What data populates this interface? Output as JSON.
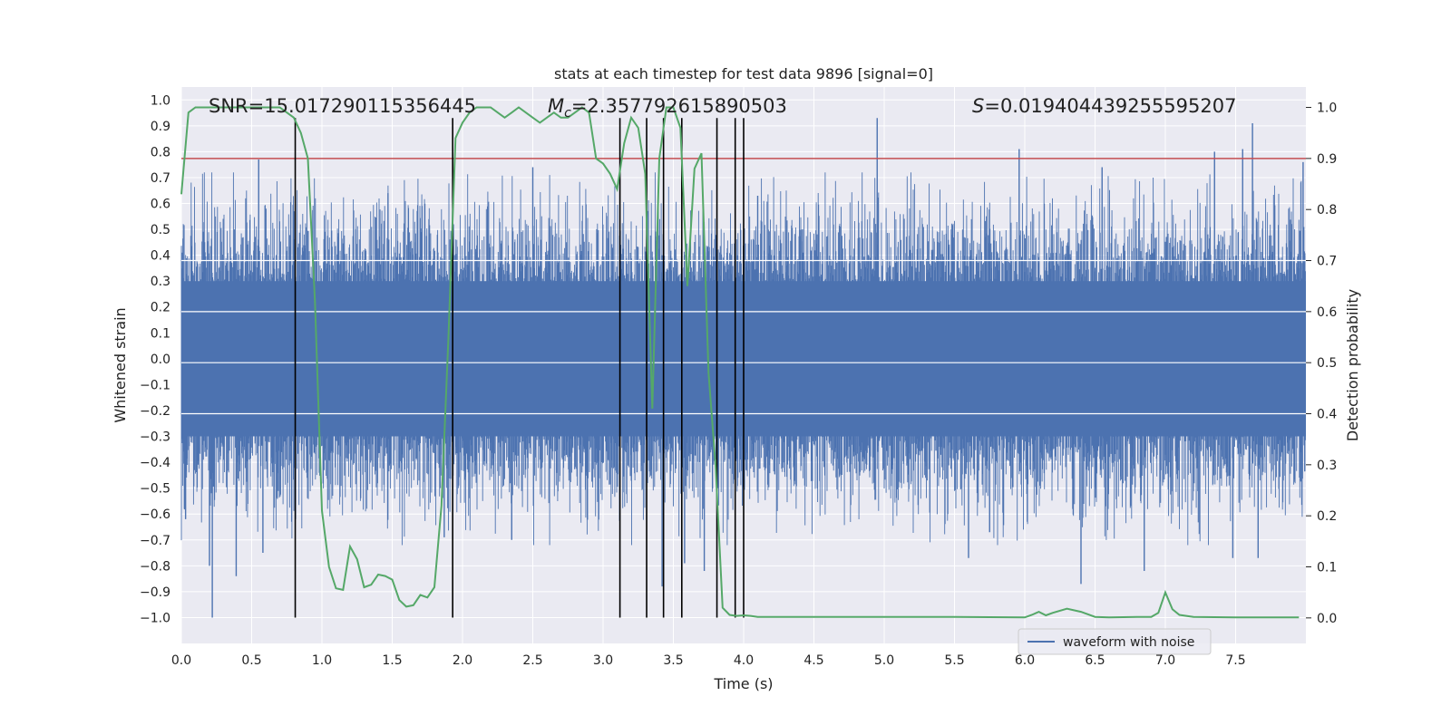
{
  "chart_data": {
    "type": "line",
    "title": "stats at each timestep for test data 9896 [signal=0]",
    "xlabel": "Time (s)",
    "ylabel": "Whitened strain",
    "ylabel_right": "Detection probability",
    "xlim": [
      0.0,
      8.0
    ],
    "ylim": [
      -1.1,
      1.05
    ],
    "ylim_right": [
      -0.05,
      1.04
    ],
    "x_ticks": [
      "0.0",
      "0.5",
      "1.0",
      "1.5",
      "2.0",
      "2.5",
      "3.0",
      "3.5",
      "4.0",
      "4.5",
      "5.0",
      "5.5",
      "6.0",
      "6.5",
      "7.0",
      "7.5"
    ],
    "y_ticks": [
      "1.0",
      "0.9",
      "0.8",
      "0.7",
      "0.6",
      "0.5",
      "0.4",
      "0.3",
      "0.2",
      "0.1",
      "0.0",
      "−0.1",
      "−0.2",
      "−0.3",
      "−0.4",
      "−0.5",
      "−0.6",
      "−0.7",
      "−0.8",
      "−0.9",
      "−1.0"
    ],
    "y_ticks_right": [
      "1.0",
      "0.9",
      "0.8",
      "0.7",
      "0.6",
      "0.5",
      "0.4",
      "0.3",
      "0.2",
      "0.1",
      "0.0"
    ],
    "annotations": {
      "snr": "SNR=15.017290115356445",
      "mc_symbol": "M",
      "mc_sub": "c",
      "mc_value": "=2.357792615890503",
      "s_symbol": "S",
      "s_value": "=0.019404439255595207"
    },
    "legend": {
      "label": "waveform with noise",
      "position": "lower right"
    },
    "threshold": 0.9,
    "vlines_x": [
      0.81,
      1.93,
      3.12,
      3.31,
      3.43,
      3.56,
      3.81,
      3.94,
      4.0
    ],
    "vline_range": [
      -1.0,
      0.93
    ],
    "series": [
      {
        "name": "waveform with noise",
        "axis": "left",
        "style": "dense noise",
        "core_amplitude": 0.4,
        "spikes": [
          {
            "x": 0.03,
            "y": -0.62
          },
          {
            "x": 0.2,
            "y": -0.8
          },
          {
            "x": 0.22,
            "y": -1.0
          },
          {
            "x": 0.39,
            "y": -0.84
          },
          {
            "x": 0.55,
            "y": 0.77
          },
          {
            "x": 0.58,
            "y": -0.75
          },
          {
            "x": 0.8,
            "y": 0.57
          },
          {
            "x": 1.47,
            "y": 0.64
          },
          {
            "x": 1.87,
            "y": -0.69
          },
          {
            "x": 2.35,
            "y": -0.7
          },
          {
            "x": 2.5,
            "y": 0.74
          },
          {
            "x": 3.42,
            "y": -0.88
          },
          {
            "x": 3.58,
            "y": -0.79
          },
          {
            "x": 3.72,
            "y": -0.82
          },
          {
            "x": 4.1,
            "y": 0.63
          },
          {
            "x": 4.95,
            "y": 0.93
          },
          {
            "x": 5.6,
            "y": -0.77
          },
          {
            "x": 5.75,
            "y": -0.67
          },
          {
            "x": 5.96,
            "y": 0.81
          },
          {
            "x": 6.4,
            "y": -0.87
          },
          {
            "x": 6.55,
            "y": 0.74
          },
          {
            "x": 6.85,
            "y": -0.82
          },
          {
            "x": 7.35,
            "y": 0.8
          },
          {
            "x": 7.48,
            "y": -0.77
          },
          {
            "x": 7.55,
            "y": 0.81
          },
          {
            "x": 7.62,
            "y": 0.91
          },
          {
            "x": 7.66,
            "y": -0.77
          },
          {
            "x": 7.98,
            "y": 0.76
          }
        ]
      },
      {
        "name": "detection probability",
        "axis": "right",
        "x": [
          0.0,
          0.05,
          0.1,
          0.2,
          0.3,
          0.4,
          0.5,
          0.6,
          0.7,
          0.75,
          0.8,
          0.85,
          0.9,
          0.95,
          1.0,
          1.05,
          1.1,
          1.15,
          1.2,
          1.25,
          1.3,
          1.35,
          1.4,
          1.45,
          1.5,
          1.55,
          1.6,
          1.65,
          1.7,
          1.75,
          1.8,
          1.85,
          1.9,
          1.95,
          2.0,
          2.05,
          2.1,
          2.15,
          2.2,
          2.25,
          2.3,
          2.35,
          2.4,
          2.45,
          2.5,
          2.55,
          2.6,
          2.65,
          2.7,
          2.75,
          2.8,
          2.85,
          2.9,
          2.95,
          3.0,
          3.05,
          3.1,
          3.15,
          3.2,
          3.25,
          3.3,
          3.35,
          3.4,
          3.45,
          3.5,
          3.55,
          3.6,
          3.65,
          3.7,
          3.75,
          3.8,
          3.85,
          3.9,
          3.95,
          4.0,
          4.05,
          4.1,
          4.15,
          4.2,
          4.3,
          4.5,
          5.0,
          5.5,
          6.0,
          6.05,
          6.1,
          6.15,
          6.2,
          6.3,
          6.4,
          6.5,
          6.6,
          6.8,
          6.9,
          6.95,
          7.0,
          7.05,
          7.1,
          7.2,
          7.5,
          7.95
        ],
        "y": [
          0.83,
          0.99,
          1.0,
          1.0,
          1.0,
          1.0,
          1.0,
          1.0,
          1.0,
          0.99,
          0.98,
          0.95,
          0.9,
          0.62,
          0.21,
          0.1,
          0.058,
          0.055,
          0.14,
          0.115,
          0.06,
          0.065,
          0.085,
          0.082,
          0.075,
          0.035,
          0.022,
          0.025,
          0.045,
          0.04,
          0.06,
          0.22,
          0.55,
          0.94,
          0.97,
          0.99,
          1.0,
          1.0,
          1.0,
          0.99,
          0.98,
          0.99,
          1.0,
          0.99,
          0.98,
          0.97,
          0.98,
          0.99,
          0.98,
          0.98,
          0.99,
          1.0,
          0.99,
          0.9,
          0.89,
          0.87,
          0.84,
          0.93,
          0.98,
          0.96,
          0.87,
          0.41,
          0.9,
          1.0,
          1.0,
          0.96,
          0.65,
          0.88,
          0.91,
          0.48,
          0.3,
          0.02,
          0.006,
          0.004,
          0.005,
          0.004,
          0.002,
          0.002,
          0.002,
          0.002,
          0.002,
          0.002,
          0.002,
          0.001,
          0.006,
          0.012,
          0.005,
          0.01,
          0.018,
          0.012,
          0.002,
          0.001,
          0.002,
          0.002,
          0.01,
          0.05,
          0.017,
          0.006,
          0.002,
          0.001,
          0.001
        ]
      }
    ]
  },
  "colors": {
    "background": "#eaeaf2",
    "grid": "#ffffff",
    "waveform": "#4c72b0",
    "probability": "#55a868",
    "threshold": "#c44e52",
    "vline": "#000000"
  }
}
